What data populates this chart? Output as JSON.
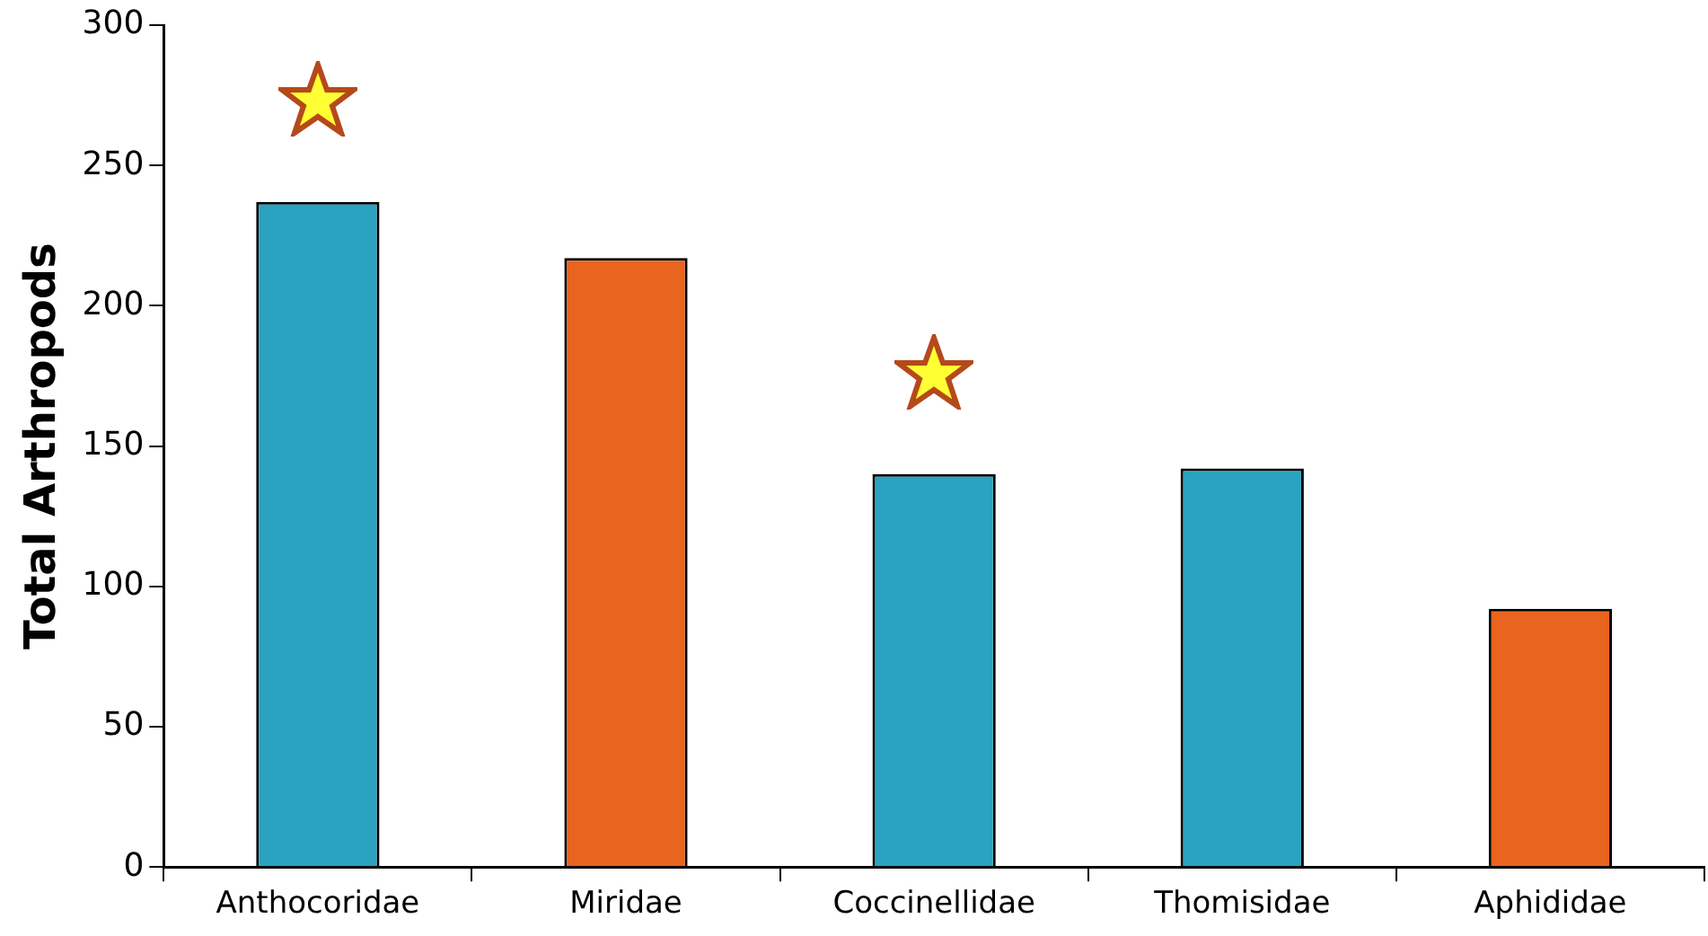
{
  "chart_data": {
    "type": "bar",
    "ylabel": "Total Arthropods",
    "categories": [
      "Anthocoridae",
      "Miridae",
      "Coccinellidae",
      "Thomisidae",
      "Aphididae"
    ],
    "values": [
      237,
      217,
      140,
      142,
      92
    ],
    "colors": [
      "#2aa3c0",
      "#e8641f",
      "#2aa3c0",
      "#2aa3c0",
      "#e8641f"
    ],
    "ylim": [
      0,
      300
    ],
    "yticks": [
      0,
      50,
      100,
      150,
      200,
      250,
      300
    ],
    "grid": false,
    "legend": false
  }
}
